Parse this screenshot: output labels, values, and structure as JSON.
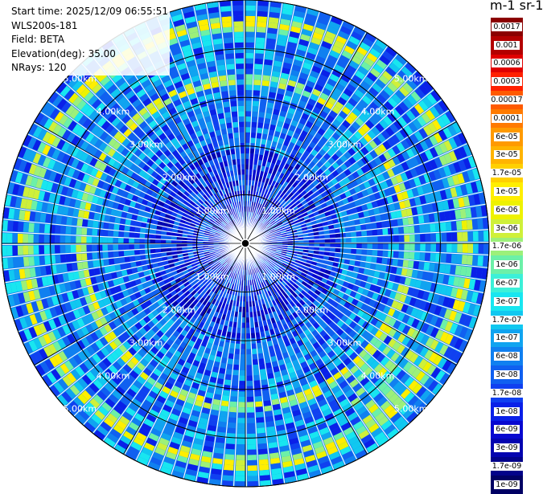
{
  "info": {
    "start_time": "Start time: 2025/12/09 06:55:51",
    "device": "WLS200s-181",
    "field": "Field: BETA",
    "elevation": "Elevation(deg): 35.00",
    "nrays": "NRays: 120"
  },
  "colorbar": {
    "unit_title": "m-1 sr-1",
    "labels": [
      "0.0017",
      "0.001",
      "0.0006",
      "0.0003",
      "0.00017",
      "0.0001",
      "6e-05",
      "3e-05",
      "1.7e-05",
      "1e-05",
      "6e-06",
      "3e-06",
      "1.7e-06",
      "1e-06",
      "6e-07",
      "3e-07",
      "1.7e-07",
      "1e-07",
      "6e-08",
      "3e-08",
      "1.7e-08",
      "1e-08",
      "6e-09",
      "3e-09",
      "1.7e-09",
      "1e-09"
    ],
    "colors": [
      "#8b0000",
      "#b30000",
      "#e00000",
      "#ff2000",
      "#ff5a00",
      "#ff7a00",
      "#ff9a00",
      "#ffb400",
      "#ffd000",
      "#ffee00",
      "#eef200",
      "#cff03a",
      "#9cf07a",
      "#6cf0a8",
      "#3cf0d8",
      "#18e6f0",
      "#10c8f0",
      "#10a4f0",
      "#1080f0",
      "#1060f0",
      "#1040f0",
      "#0a20e8",
      "#0808d0",
      "#0404b0",
      "#02028a",
      "#000064"
    ]
  },
  "chart_data": {
    "type": "heatmap",
    "projection": "polar",
    "field": "BETA",
    "elevation_deg": 35.0,
    "n_rays": 120,
    "range_rings_km": [
      1,
      2,
      3,
      4,
      5
    ],
    "ring_labels": [
      "1.00km",
      "2.00km",
      "3.00km",
      "4.00km",
      "5.00km"
    ],
    "max_range_km": 5.0,
    "grid": true,
    "colorbar_position": "right",
    "features": [
      {
        "description": "aerosol ring",
        "range_km": 4.6,
        "beta": "1e-05 to 3e-06"
      },
      {
        "description": "aerosol ring",
        "range_km": 3.3,
        "beta": "1e-05 to 3e-06"
      }
    ]
  }
}
